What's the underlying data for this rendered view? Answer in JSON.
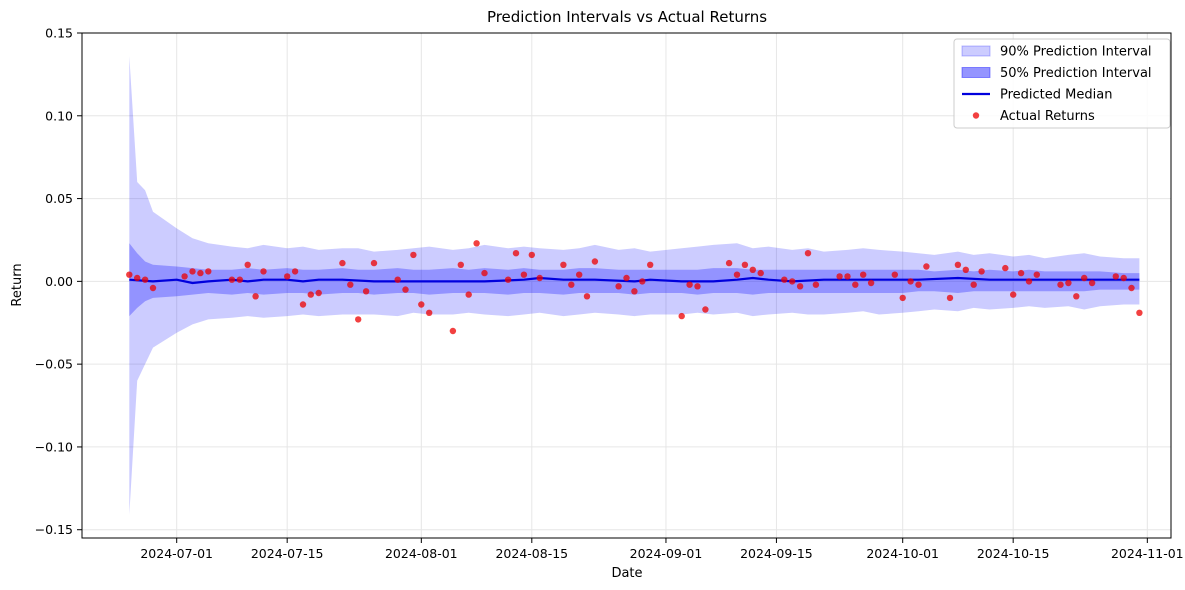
{
  "chart_data": {
    "type": "line",
    "title": "Prediction Intervals vs Actual Returns",
    "xlabel": "Date",
    "ylabel": "Return",
    "xlim": [
      "2024-06-19",
      "2024-11-04"
    ],
    "ylim": [
      -0.155,
      0.15
    ],
    "grid": true,
    "legend_position": "top-right",
    "x_ticks": [
      "2024-07-01",
      "2024-07-15",
      "2024-08-01",
      "2024-08-15",
      "2024-09-01",
      "2024-09-15",
      "2024-10-01",
      "2024-10-15",
      "2024-11-01"
    ],
    "y_ticks": [
      0.15,
      0.1,
      0.05,
      0.0,
      -0.05,
      -0.1,
      -0.15
    ],
    "y_tick_labels": [
      "0.15",
      "0.10",
      "0.05",
      "0.00",
      "−0.05",
      "−0.10",
      "−0.15"
    ],
    "colors": {
      "interval_90": "#0000ff",
      "interval_50": "#0000ff",
      "median": "#0000dd",
      "actual": "#ee0000"
    },
    "legend": [
      {
        "label": "90% Prediction Interval",
        "kind": "band90"
      },
      {
        "label": "50% Prediction Interval",
        "kind": "band50"
      },
      {
        "label": "Predicted Median",
        "kind": "line"
      },
      {
        "label": "Actual Returns",
        "kind": "dot"
      }
    ],
    "series": [
      {
        "name": "90% Prediction Interval",
        "kind": "band",
        "x": [
          "2024-06-25",
          "2024-06-26",
          "2024-06-27",
          "2024-06-28",
          "2024-07-01",
          "2024-07-03",
          "2024-07-05",
          "2024-07-08",
          "2024-07-10",
          "2024-07-12",
          "2024-07-15",
          "2024-07-17",
          "2024-07-19",
          "2024-07-22",
          "2024-07-24",
          "2024-07-26",
          "2024-07-29",
          "2024-07-31",
          "2024-08-02",
          "2024-08-05",
          "2024-08-07",
          "2024-08-09",
          "2024-08-12",
          "2024-08-14",
          "2024-08-16",
          "2024-08-19",
          "2024-08-21",
          "2024-08-23",
          "2024-08-26",
          "2024-08-28",
          "2024-08-30",
          "2024-09-03",
          "2024-09-05",
          "2024-09-07",
          "2024-09-10",
          "2024-09-12",
          "2024-09-14",
          "2024-09-17",
          "2024-09-19",
          "2024-09-21",
          "2024-09-24",
          "2024-09-26",
          "2024-09-28",
          "2024-10-01",
          "2024-10-03",
          "2024-10-05",
          "2024-10-08",
          "2024-10-10",
          "2024-10-12",
          "2024-10-15",
          "2024-10-17",
          "2024-10-19",
          "2024-10-22",
          "2024-10-24",
          "2024-10-26",
          "2024-10-29",
          "2024-10-31"
        ],
        "upper": [
          0.136,
          0.06,
          0.055,
          0.042,
          0.032,
          0.026,
          0.023,
          0.021,
          0.02,
          0.022,
          0.02,
          0.021,
          0.019,
          0.02,
          0.02,
          0.018,
          0.019,
          0.02,
          0.021,
          0.019,
          0.02,
          0.022,
          0.02,
          0.021,
          0.02,
          0.019,
          0.02,
          0.022,
          0.019,
          0.02,
          0.018,
          0.02,
          0.021,
          0.022,
          0.023,
          0.02,
          0.021,
          0.019,
          0.02,
          0.018,
          0.019,
          0.02,
          0.019,
          0.018,
          0.017,
          0.016,
          0.018,
          0.016,
          0.017,
          0.015,
          0.016,
          0.014,
          0.016,
          0.017,
          0.015,
          0.014,
          0.014
        ],
        "lower": [
          -0.141,
          -0.06,
          -0.05,
          -0.04,
          -0.031,
          -0.026,
          -0.023,
          -0.022,
          -0.021,
          -0.022,
          -0.021,
          -0.02,
          -0.021,
          -0.02,
          -0.02,
          -0.02,
          -0.021,
          -0.019,
          -0.02,
          -0.02,
          -0.019,
          -0.02,
          -0.021,
          -0.02,
          -0.019,
          -0.021,
          -0.02,
          -0.019,
          -0.02,
          -0.021,
          -0.02,
          -0.02,
          -0.019,
          -0.02,
          -0.019,
          -0.021,
          -0.02,
          -0.019,
          -0.02,
          -0.02,
          -0.019,
          -0.018,
          -0.02,
          -0.019,
          -0.018,
          -0.017,
          -0.018,
          -0.016,
          -0.017,
          -0.016,
          -0.015,
          -0.016,
          -0.015,
          -0.017,
          -0.015,
          -0.014,
          -0.014
        ]
      },
      {
        "name": "50% Prediction Interval",
        "kind": "band",
        "x": [
          "2024-06-25",
          "2024-06-26",
          "2024-06-27",
          "2024-06-28",
          "2024-07-01",
          "2024-07-03",
          "2024-07-05",
          "2024-07-08",
          "2024-07-10",
          "2024-07-12",
          "2024-07-15",
          "2024-07-17",
          "2024-07-19",
          "2024-07-22",
          "2024-07-24",
          "2024-07-26",
          "2024-07-29",
          "2024-07-31",
          "2024-08-02",
          "2024-08-05",
          "2024-08-07",
          "2024-08-09",
          "2024-08-12",
          "2024-08-14",
          "2024-08-16",
          "2024-08-19",
          "2024-08-21",
          "2024-08-23",
          "2024-08-26",
          "2024-08-28",
          "2024-08-30",
          "2024-09-03",
          "2024-09-05",
          "2024-09-07",
          "2024-09-10",
          "2024-09-12",
          "2024-09-14",
          "2024-09-17",
          "2024-09-19",
          "2024-09-21",
          "2024-09-24",
          "2024-09-26",
          "2024-09-28",
          "2024-10-01",
          "2024-10-03",
          "2024-10-05",
          "2024-10-08",
          "2024-10-10",
          "2024-10-12",
          "2024-10-15",
          "2024-10-17",
          "2024-10-19",
          "2024-10-22",
          "2024-10-24",
          "2024-10-26",
          "2024-10-29",
          "2024-10-31"
        ],
        "upper": [
          0.023,
          0.017,
          0.012,
          0.01,
          0.009,
          0.008,
          0.007,
          0.007,
          0.008,
          0.007,
          0.008,
          0.007,
          0.007,
          0.008,
          0.007,
          0.007,
          0.008,
          0.007,
          0.007,
          0.008,
          0.007,
          0.008,
          0.007,
          0.008,
          0.007,
          0.007,
          0.008,
          0.008,
          0.007,
          0.007,
          0.007,
          0.007,
          0.007,
          0.008,
          0.008,
          0.007,
          0.007,
          0.007,
          0.007,
          0.007,
          0.007,
          0.007,
          0.007,
          0.007,
          0.007,
          0.006,
          0.007,
          0.006,
          0.007,
          0.006,
          0.007,
          0.006,
          0.006,
          0.006,
          0.006,
          0.005,
          0.005
        ],
        "lower": [
          -0.021,
          -0.016,
          -0.012,
          -0.01,
          -0.009,
          -0.008,
          -0.007,
          -0.008,
          -0.007,
          -0.008,
          -0.007,
          -0.007,
          -0.008,
          -0.007,
          -0.007,
          -0.008,
          -0.007,
          -0.007,
          -0.008,
          -0.007,
          -0.007,
          -0.007,
          -0.008,
          -0.007,
          -0.007,
          -0.008,
          -0.007,
          -0.007,
          -0.007,
          -0.008,
          -0.007,
          -0.007,
          -0.008,
          -0.007,
          -0.007,
          -0.008,
          -0.007,
          -0.007,
          -0.007,
          -0.007,
          -0.007,
          -0.007,
          -0.007,
          -0.007,
          -0.006,
          -0.006,
          -0.007,
          -0.006,
          -0.006,
          -0.006,
          -0.006,
          -0.006,
          -0.006,
          -0.006,
          -0.005,
          -0.005,
          -0.005
        ]
      },
      {
        "name": "Predicted Median",
        "kind": "line",
        "x": [
          "2024-06-25",
          "2024-06-28",
          "2024-07-01",
          "2024-07-03",
          "2024-07-05",
          "2024-07-08",
          "2024-07-10",
          "2024-07-12",
          "2024-07-15",
          "2024-07-17",
          "2024-07-19",
          "2024-07-22",
          "2024-07-26",
          "2024-07-31",
          "2024-08-05",
          "2024-08-09",
          "2024-08-14",
          "2024-08-16",
          "2024-08-19",
          "2024-08-23",
          "2024-08-28",
          "2024-08-30",
          "2024-09-03",
          "2024-09-07",
          "2024-09-10",
          "2024-09-12",
          "2024-09-14",
          "2024-09-17",
          "2024-09-21",
          "2024-09-26",
          "2024-10-01",
          "2024-10-03",
          "2024-10-08",
          "2024-10-12",
          "2024-10-15",
          "2024-10-17",
          "2024-10-22",
          "2024-10-26",
          "2024-10-31"
        ],
        "values": [
          0.001,
          0.0,
          0.001,
          -0.001,
          0.0,
          0.001,
          0.0,
          0.001,
          0.001,
          0.0,
          0.001,
          0.001,
          0.0,
          0.0,
          0.0,
          0.0,
          0.001,
          0.002,
          0.001,
          0.001,
          0.0,
          0.001,
          0.0,
          0.0,
          0.001,
          0.002,
          0.001,
          0.0,
          0.001,
          0.001,
          0.001,
          0.001,
          0.002,
          0.001,
          0.001,
          0.001,
          0.001,
          0.001,
          0.001
        ]
      },
      {
        "name": "Actual Returns",
        "kind": "scatter",
        "x": [
          "2024-06-25",
          "2024-06-26",
          "2024-06-27",
          "2024-06-28",
          "2024-07-02",
          "2024-07-03",
          "2024-07-04",
          "2024-07-05",
          "2024-07-08",
          "2024-07-09",
          "2024-07-10",
          "2024-07-11",
          "2024-07-12",
          "2024-07-15",
          "2024-07-16",
          "2024-07-17",
          "2024-07-18",
          "2024-07-19",
          "2024-07-22",
          "2024-07-23",
          "2024-07-24",
          "2024-07-25",
          "2024-07-26",
          "2024-07-29",
          "2024-07-30",
          "2024-07-31",
          "2024-08-01",
          "2024-08-02",
          "2024-08-05",
          "2024-08-06",
          "2024-08-07",
          "2024-08-08",
          "2024-08-09",
          "2024-08-12",
          "2024-08-13",
          "2024-08-14",
          "2024-08-15",
          "2024-08-16",
          "2024-08-19",
          "2024-08-20",
          "2024-08-21",
          "2024-08-22",
          "2024-08-23",
          "2024-08-26",
          "2024-08-27",
          "2024-08-28",
          "2024-08-29",
          "2024-08-30",
          "2024-09-03",
          "2024-09-04",
          "2024-09-05",
          "2024-09-06",
          "2024-09-09",
          "2024-09-10",
          "2024-09-11",
          "2024-09-12",
          "2024-09-13",
          "2024-09-16",
          "2024-09-17",
          "2024-09-18",
          "2024-09-19",
          "2024-09-20",
          "2024-09-23",
          "2024-09-24",
          "2024-09-25",
          "2024-09-26",
          "2024-09-27",
          "2024-09-30",
          "2024-10-01",
          "2024-10-02",
          "2024-10-03",
          "2024-10-04",
          "2024-10-07",
          "2024-10-08",
          "2024-10-09",
          "2024-10-10",
          "2024-10-11",
          "2024-10-14",
          "2024-10-15",
          "2024-10-16",
          "2024-10-17",
          "2024-10-18",
          "2024-10-21",
          "2024-10-22",
          "2024-10-23",
          "2024-10-24",
          "2024-10-25",
          "2024-10-28",
          "2024-10-29",
          "2024-10-30",
          "2024-10-31"
        ],
        "values": [
          0.004,
          0.002,
          0.001,
          -0.004,
          0.003,
          0.006,
          0.005,
          0.006,
          0.001,
          0.001,
          0.01,
          -0.009,
          0.006,
          0.003,
          0.006,
          -0.014,
          -0.008,
          -0.007,
          0.011,
          -0.002,
          -0.023,
          -0.006,
          0.011,
          0.001,
          -0.005,
          0.016,
          -0.014,
          -0.019,
          -0.03,
          0.01,
          -0.008,
          0.023,
          0.005,
          0.001,
          0.017,
          0.004,
          0.016,
          0.002,
          0.01,
          -0.002,
          0.004,
          -0.009,
          0.012,
          -0.003,
          0.002,
          -0.006,
          0.0,
          0.01,
          -0.021,
          -0.002,
          -0.003,
          -0.017,
          0.011,
          0.004,
          0.01,
          0.007,
          0.005,
          0.001,
          0.0,
          -0.003,
          0.017,
          -0.002,
          0.003,
          0.003,
          -0.002,
          0.004,
          -0.001,
          0.004,
          -0.01,
          0.0,
          -0.002,
          0.009,
          -0.01,
          0.01,
          0.007,
          -0.002,
          0.006,
          0.008,
          -0.008,
          0.005,
          0.0,
          0.004,
          -0.002,
          -0.001,
          -0.009,
          0.002,
          -0.001,
          0.003,
          0.002,
          -0.004,
          -0.019
        ]
      }
    ]
  }
}
